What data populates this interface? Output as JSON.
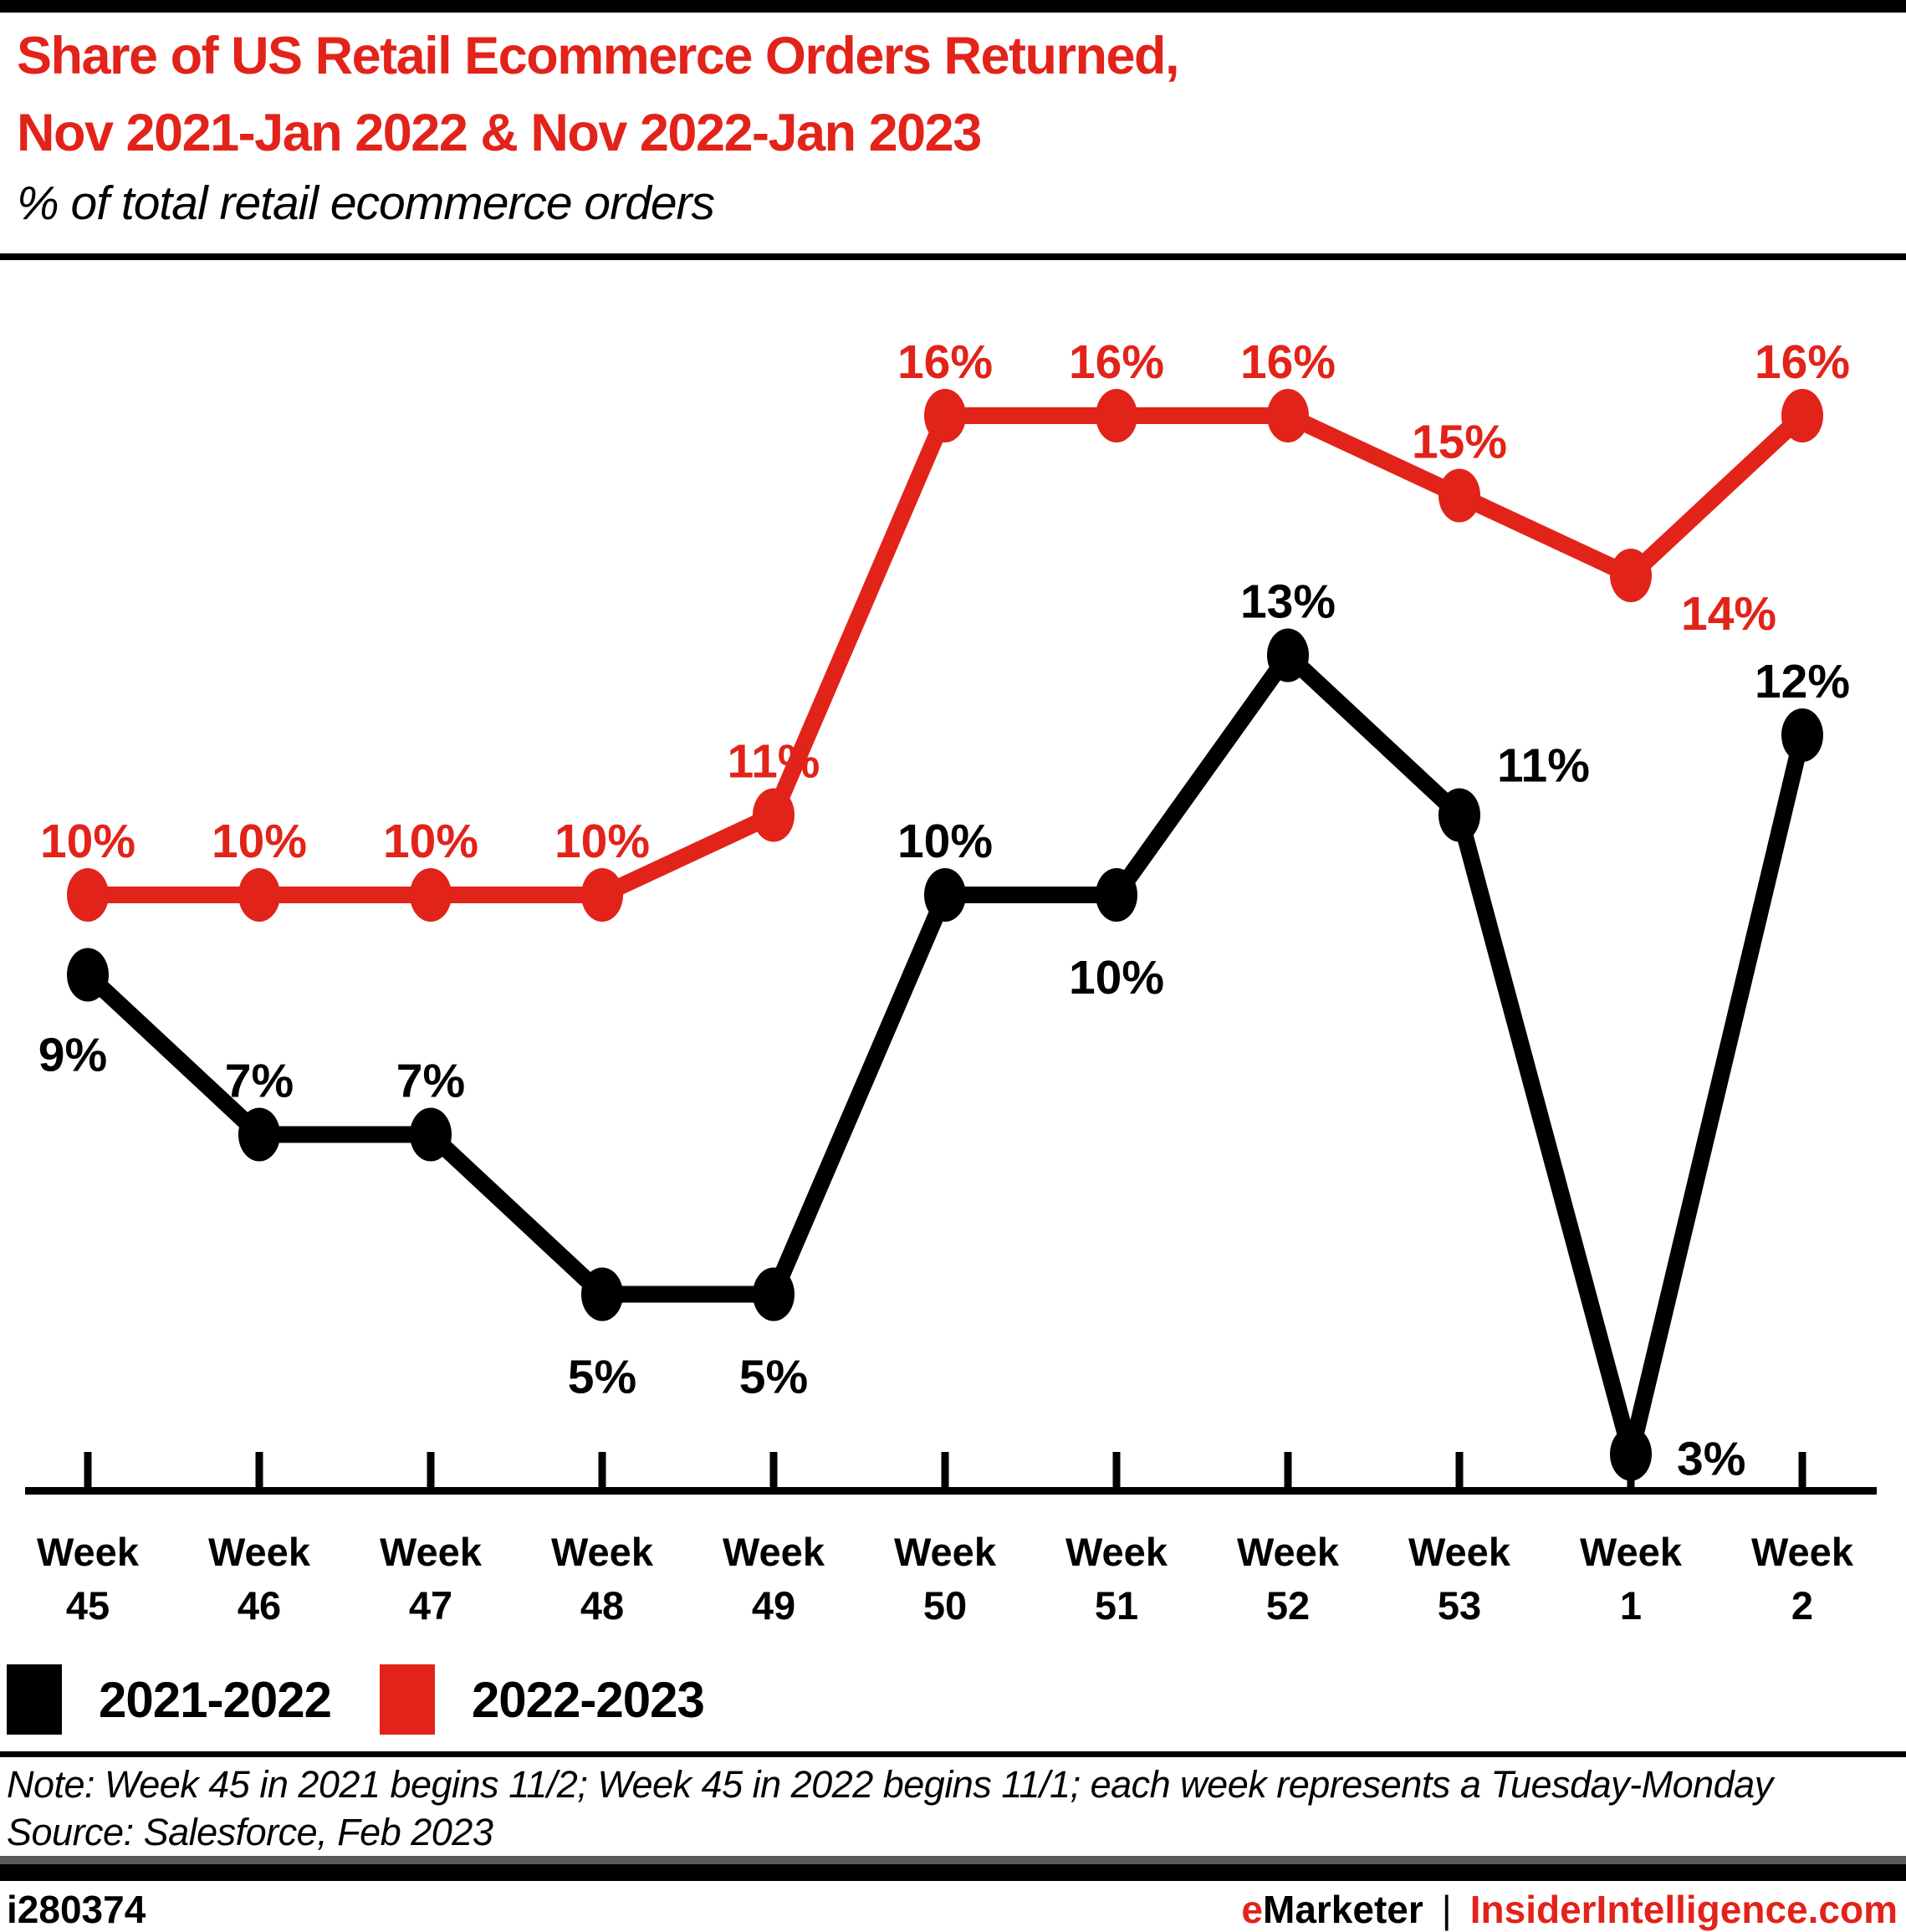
{
  "header": {
    "title_line1": "Share of US Retail Ecommerce Orders Returned,",
    "title_line2": "Nov 2021-Jan 2022 & Nov 2022-Jan 2023",
    "subtitle": "% of total retail ecommerce orders"
  },
  "chart_data": {
    "type": "line",
    "title": "Share of US Retail Ecommerce Orders Returned, Nov 2021-Jan 2022 & Nov 2022-Jan 2023",
    "subtitle": "% of total retail ecommerce orders",
    "x_prefix": "Week",
    "categories": [
      "45",
      "46",
      "47",
      "48",
      "49",
      "50",
      "51",
      "52",
      "53",
      "1",
      "2"
    ],
    "value_suffix": "%",
    "ylim": [
      0,
      18
    ],
    "grid": false,
    "legend_position": "bottom-left",
    "series": [
      {
        "name": "2021-2022",
        "color": "#000000",
        "values": [
          9,
          7,
          7,
          5,
          5,
          10,
          10,
          13,
          11,
          3,
          12
        ],
        "label_placements": [
          "below-left",
          "above",
          "above",
          "below",
          "below",
          "above",
          "below",
          "above",
          "above-right",
          "right",
          "above"
        ]
      },
      {
        "name": "2022-2023",
        "color": "#e2231a",
        "values": [
          10,
          10,
          10,
          10,
          11,
          16,
          16,
          16,
          15,
          14,
          16
        ],
        "label_placements": [
          "above",
          "above",
          "above",
          "above",
          "above",
          "above",
          "above",
          "above",
          "above",
          "below-right",
          "above"
        ]
      }
    ]
  },
  "legend": {
    "items": [
      {
        "label": "2021-2022",
        "color": "#000000"
      },
      {
        "label": "2022-2023",
        "color": "#e2231a"
      }
    ]
  },
  "notes": {
    "note": "Note: Week 45 in 2021 begins 11/2; Week 45 in 2022 begins 11/1; each week represents a Tuesday-Monday",
    "source": "Source: Salesforce, Feb 2023"
  },
  "footer": {
    "chart_id": "i280374",
    "brand_first_letter": "e",
    "brand_rest": "Marketer",
    "separator": "|",
    "site": "InsiderIntelligence.com"
  },
  "colors": {
    "accent_red": "#e2231a",
    "black": "#000000",
    "gray_bar": "#58595b"
  }
}
